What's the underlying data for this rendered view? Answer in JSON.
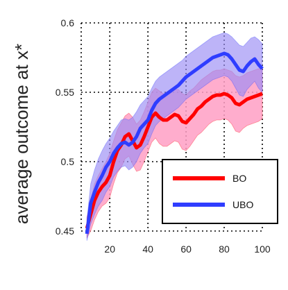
{
  "chart_data": {
    "type": "line",
    "title": "",
    "xlabel": "",
    "ylabel": "average outcome at x*",
    "xlim": [
      5,
      100
    ],
    "ylim": [
      0.45,
      0.6
    ],
    "xticks": [
      20,
      40,
      60,
      80,
      100
    ],
    "yticks": [
      0.45,
      0.5,
      0.55,
      0.6
    ],
    "xtick_labels": [
      "20",
      "40",
      "60",
      "80",
      "100"
    ],
    "ytick_labels": [
      "0.45",
      "0.5",
      "0.55",
      "0.6"
    ],
    "grid": true,
    "legend_position": "lower-right",
    "series": [
      {
        "name": "BO",
        "color": "#ff0000",
        "band_color": "#ff9fc4",
        "x": [
          8,
          10,
          12,
          14,
          16,
          18,
          20,
          22,
          24,
          26,
          28,
          30,
          32,
          34,
          36,
          38,
          40,
          42,
          44,
          46,
          48,
          50,
          52,
          54,
          56,
          58,
          60,
          62,
          64,
          66,
          68,
          70,
          72,
          74,
          76,
          78,
          80,
          82,
          84,
          86,
          88,
          90,
          92,
          94,
          96,
          98,
          100
        ],
        "mean": [
          0.452,
          0.462,
          0.472,
          0.478,
          0.482,
          0.485,
          0.49,
          0.5,
          0.508,
          0.512,
          0.518,
          0.52,
          0.515,
          0.51,
          0.512,
          0.518,
          0.525,
          0.532,
          0.535,
          0.532,
          0.53,
          0.53,
          0.532,
          0.534,
          0.533,
          0.529,
          0.528,
          0.531,
          0.534,
          0.538,
          0.54,
          0.543,
          0.545,
          0.547,
          0.548,
          0.548,
          0.549,
          0.548,
          0.546,
          0.542,
          0.541,
          0.543,
          0.545,
          0.546,
          0.547,
          0.548,
          0.549
        ],
        "upper": [
          0.46,
          0.472,
          0.484,
          0.49,
          0.495,
          0.5,
          0.506,
          0.515,
          0.523,
          0.528,
          0.533,
          0.535,
          0.532,
          0.527,
          0.53,
          0.536,
          0.543,
          0.55,
          0.553,
          0.551,
          0.549,
          0.549,
          0.551,
          0.552,
          0.552,
          0.549,
          0.548,
          0.551,
          0.553,
          0.556,
          0.559,
          0.561,
          0.563,
          0.565,
          0.566,
          0.566,
          0.567,
          0.566,
          0.565,
          0.562,
          0.561,
          0.562,
          0.564,
          0.565,
          0.566,
          0.567,
          0.567
        ],
        "lower": [
          0.445,
          0.45,
          0.458,
          0.464,
          0.468,
          0.47,
          0.474,
          0.484,
          0.492,
          0.496,
          0.502,
          0.504,
          0.498,
          0.493,
          0.494,
          0.5,
          0.507,
          0.514,
          0.517,
          0.513,
          0.511,
          0.511,
          0.513,
          0.515,
          0.514,
          0.509,
          0.508,
          0.511,
          0.515,
          0.519,
          0.521,
          0.524,
          0.527,
          0.529,
          0.53,
          0.53,
          0.531,
          0.53,
          0.527,
          0.522,
          0.521,
          0.524,
          0.526,
          0.527,
          0.528,
          0.529,
          0.531
        ]
      },
      {
        "name": "UBO",
        "color": "#2f3dff",
        "band_color": "#9a8cf5",
        "x": [
          8,
          10,
          12,
          14,
          16,
          18,
          20,
          22,
          24,
          26,
          28,
          30,
          32,
          34,
          36,
          38,
          40,
          42,
          44,
          46,
          48,
          50,
          52,
          54,
          56,
          58,
          60,
          62,
          64,
          66,
          68,
          70,
          72,
          74,
          76,
          78,
          80,
          82,
          84,
          86,
          88,
          90,
          92,
          94,
          96,
          98,
          100
        ],
        "mean": [
          0.448,
          0.47,
          0.478,
          0.485,
          0.49,
          0.496,
          0.5,
          0.506,
          0.51,
          0.513,
          0.514,
          0.512,
          0.514,
          0.518,
          0.524,
          0.527,
          0.53,
          0.537,
          0.542,
          0.545,
          0.547,
          0.549,
          0.551,
          0.553,
          0.555,
          0.558,
          0.561,
          0.563,
          0.565,
          0.567,
          0.569,
          0.571,
          0.573,
          0.575,
          0.576,
          0.577,
          0.578,
          0.577,
          0.574,
          0.57,
          0.566,
          0.565,
          0.569,
          0.572,
          0.574,
          0.57,
          0.567
        ],
        "upper": [
          0.458,
          0.484,
          0.494,
          0.502,
          0.508,
          0.513,
          0.517,
          0.522,
          0.526,
          0.53,
          0.531,
          0.53,
          0.532,
          0.536,
          0.541,
          0.544,
          0.547,
          0.553,
          0.558,
          0.561,
          0.563,
          0.565,
          0.567,
          0.569,
          0.571,
          0.573,
          0.576,
          0.578,
          0.58,
          0.582,
          0.584,
          0.586,
          0.588,
          0.59,
          0.591,
          0.592,
          0.593,
          0.592,
          0.59,
          0.587,
          0.584,
          0.583,
          0.586,
          0.589,
          0.59,
          0.588,
          0.585
        ],
        "lower": [
          0.443,
          0.455,
          0.462,
          0.468,
          0.472,
          0.478,
          0.482,
          0.489,
          0.493,
          0.496,
          0.497,
          0.494,
          0.496,
          0.5,
          0.506,
          0.51,
          0.513,
          0.52,
          0.526,
          0.529,
          0.531,
          0.533,
          0.535,
          0.537,
          0.539,
          0.542,
          0.545,
          0.547,
          0.549,
          0.551,
          0.553,
          0.555,
          0.557,
          0.559,
          0.56,
          0.561,
          0.562,
          0.561,
          0.558,
          0.553,
          0.548,
          0.547,
          0.552,
          0.555,
          0.558,
          0.553,
          0.55
        ]
      }
    ]
  }
}
